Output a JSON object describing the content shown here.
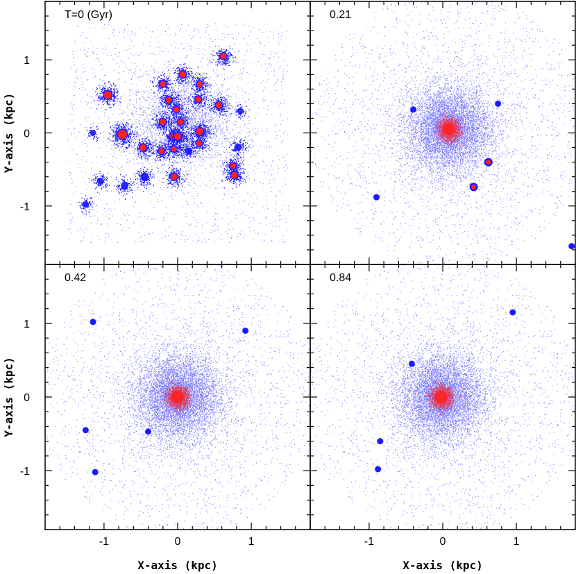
{
  "chart_data": {
    "type": "scatter",
    "layout": "2x2 panels, shared axes",
    "xlabel": "X-axis (kpc)",
    "ylabel": "Y-axis (kpc)",
    "xlim": [
      -1.8,
      1.8
    ],
    "ylim": [
      -1.8,
      1.8
    ],
    "xticks": [
      "-1",
      "0",
      "1"
    ],
    "yticks": [
      "1",
      "0",
      "-1"
    ],
    "grid": false,
    "colors": {
      "particles": "#1a1aff",
      "dense": "#ff2020"
    },
    "panels": [
      {
        "label": "T=0 (Gyr)",
        "time_gyr": 0,
        "description_clumps": [
          {
            "x": -0.95,
            "y": 0.52,
            "mass": 1.2,
            "core": true
          },
          {
            "x": -0.75,
            "y": -0.02,
            "mass": 1.6,
            "core": true
          },
          {
            "x": -0.47,
            "y": -0.2,
            "mass": 0.9,
            "core": true
          },
          {
            "x": -0.45,
            "y": -0.6,
            "mass": 0.7,
            "core": false
          },
          {
            "x": -0.72,
            "y": -0.72,
            "mass": 0.5,
            "core": false
          },
          {
            "x": -1.05,
            "y": -0.66,
            "mass": 0.4,
            "core": false
          },
          {
            "x": -1.25,
            "y": -0.98,
            "mass": 0.3,
            "core": false
          },
          {
            "x": -0.2,
            "y": 0.67,
            "mass": 0.7,
            "core": true
          },
          {
            "x": 0.07,
            "y": 0.8,
            "mass": 0.8,
            "core": true
          },
          {
            "x": 0.3,
            "y": 0.67,
            "mass": 0.7,
            "core": true
          },
          {
            "x": 0.62,
            "y": 1.05,
            "mass": 0.8,
            "core": true
          },
          {
            "x": -0.12,
            "y": 0.45,
            "mass": 0.8,
            "core": true
          },
          {
            "x": 0.28,
            "y": 0.46,
            "mass": 0.7,
            "core": true
          },
          {
            "x": -0.02,
            "y": 0.32,
            "mass": 0.7,
            "core": true
          },
          {
            "x": 0.56,
            "y": 0.38,
            "mass": 0.8,
            "core": true
          },
          {
            "x": -0.2,
            "y": 0.15,
            "mass": 0.8,
            "core": true
          },
          {
            "x": 0.04,
            "y": 0.15,
            "mass": 0.7,
            "core": true
          },
          {
            "x": 0.3,
            "y": 0.02,
            "mass": 1.1,
            "core": true
          },
          {
            "x": -0.06,
            "y": -0.05,
            "mass": 1.0,
            "core": true
          },
          {
            "x": 0.0,
            "y": -0.05,
            "mass": 1.0,
            "core": true
          },
          {
            "x": 0.29,
            "y": -0.14,
            "mass": 0.6,
            "core": true
          },
          {
            "x": -0.22,
            "y": -0.25,
            "mass": 0.7,
            "core": true
          },
          {
            "x": -0.05,
            "y": -0.22,
            "mass": 0.6,
            "core": true
          },
          {
            "x": 0.15,
            "y": -0.25,
            "mass": 0.5,
            "core": false
          },
          {
            "x": -0.05,
            "y": -0.6,
            "mass": 0.8,
            "core": true
          },
          {
            "x": 0.75,
            "y": -0.45,
            "mass": 0.7,
            "core": true
          },
          {
            "x": 0.77,
            "y": -0.58,
            "mass": 0.9,
            "core": true
          },
          {
            "x": 0.82,
            "y": -0.2,
            "mass": 0.5,
            "core": false
          },
          {
            "x": -1.15,
            "y": 0.0,
            "mass": 0.2,
            "core": false
          },
          {
            "x": 0.85,
            "y": 0.3,
            "mass": 0.2,
            "core": false
          }
        ]
      },
      {
        "label": "0.21",
        "time_gyr": 0.21,
        "center": {
          "x": 0.08,
          "y": 0.05
        },
        "satellites": [
          {
            "x": 0.62,
            "y": -0.4,
            "core": true
          },
          {
            "x": 0.42,
            "y": -0.74,
            "core": true
          },
          {
            "x": -0.9,
            "y": -0.88,
            "core": false
          },
          {
            "x": -0.4,
            "y": 0.32,
            "core": false
          },
          {
            "x": 0.75,
            "y": 0.4,
            "core": false
          },
          {
            "x": 1.75,
            "y": -1.55,
            "core": false
          }
        ]
      },
      {
        "label": "0.42",
        "time_gyr": 0.42,
        "center": {
          "x": 0.0,
          "y": 0.0
        },
        "satellites": [
          {
            "x": -1.12,
            "y": -1.02,
            "core": false
          },
          {
            "x": -0.4,
            "y": -0.47,
            "core": false
          },
          {
            "x": -1.25,
            "y": -0.45,
            "core": false
          },
          {
            "x": 0.92,
            "y": 0.9,
            "core": false
          },
          {
            "x": -1.15,
            "y": 1.02,
            "core": false
          }
        ]
      },
      {
        "label": "0.84",
        "time_gyr": 0.84,
        "center": {
          "x": -0.02,
          "y": 0.0
        },
        "satellites": [
          {
            "x": -0.88,
            "y": -0.98,
            "core": false
          },
          {
            "x": -0.42,
            "y": 0.45,
            "core": false
          },
          {
            "x": 0.95,
            "y": 1.15,
            "core": false
          },
          {
            "x": -0.85,
            "y": -0.6,
            "core": false
          }
        ]
      }
    ]
  }
}
